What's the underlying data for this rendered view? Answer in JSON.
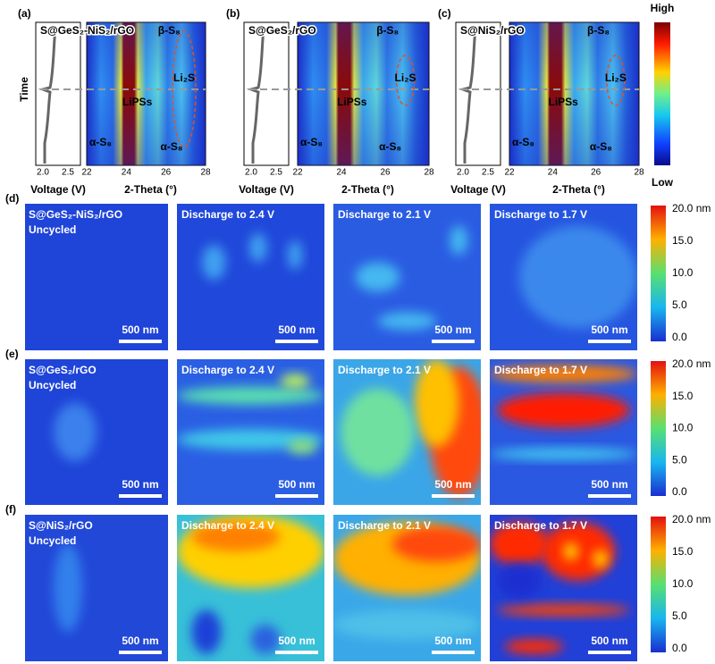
{
  "top_colorbar": {
    "high": "High",
    "low": "Low"
  },
  "top_axes": {
    "y_label": "Time",
    "voltage_ticks": [
      "2.0",
      "2.5"
    ],
    "voltage_label": "Voltage (V)",
    "theta_ticks": [
      "22",
      "24",
      "26",
      "28"
    ],
    "theta_label": "2-Theta (°)"
  },
  "top_panels": [
    {
      "label": "(a)",
      "title": "S@GeS₂-NiS₂/rGO",
      "beta": "β-S₈",
      "li2s": "Li₂S",
      "lipss": "LiPSs",
      "alpha_left": "α-S₈",
      "alpha_right": "α-S₈"
    },
    {
      "label": "(b)",
      "title": "S@GeS₂/rGO",
      "beta": "β-S₈",
      "li2s": "Li₂S",
      "lipss": "LiPSs",
      "alpha_left": "α-S₈",
      "alpha_right": "α-S₈"
    },
    {
      "label": "(c)",
      "title": "S@NiS₂/rGO",
      "beta": "β-S₈",
      "li2s": "Li₂S",
      "lipss": "LiPSs",
      "alpha_left": "α-S₈",
      "alpha_right": "α-S₈"
    }
  ],
  "image_titles": [
    "Discharge to 2.4 V",
    "Discharge to 2.1 V",
    "Discharge to 1.7 V"
  ],
  "scale_bar": "500 nm",
  "rows": [
    {
      "label": "(d)",
      "sample": "S@GeS₂-NiS₂/rGO",
      "state": "Uncycled"
    },
    {
      "label": "(e)",
      "sample": "S@GeS₂/rGO",
      "state": "Uncycled"
    },
    {
      "label": "(f)",
      "sample": "S@NiS₂/rGO",
      "state": "Uncycled"
    }
  ],
  "height_colorbar": {
    "ticks": [
      "20.0 nm",
      "15.0",
      "10.0",
      "5.0",
      "0.0"
    ]
  }
}
